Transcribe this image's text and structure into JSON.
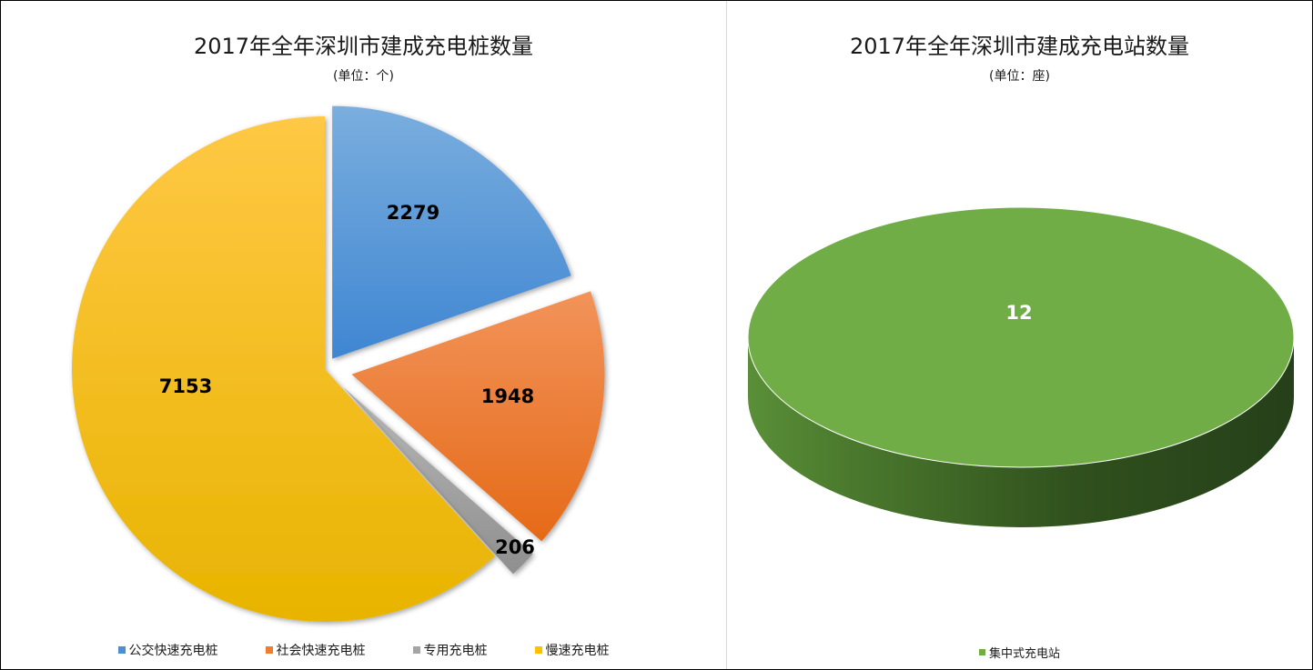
{
  "chart_data": [
    {
      "type": "pie",
      "title": "2017年全年深圳市建成充电桩数量",
      "subtitle": "(单位：个)",
      "categories": [
        "公交快速充电桩",
        "社会快速充电桩",
        "专用充电桩",
        "慢速充电桩"
      ],
      "values": [
        2279,
        1948,
        206,
        7153
      ],
      "data_labels": [
        "2279",
        "1948",
        "206",
        "7153"
      ],
      "colors": [
        "#4a8fd6",
        "#ed7d31",
        "#a5a5a5",
        "#ffc000"
      ],
      "legend_position": "bottom",
      "exploded": true
    },
    {
      "type": "pie",
      "title": "2017年全年深圳市建成充电站数量",
      "subtitle": "(单位：座)",
      "categories": [
        "集中式充电站"
      ],
      "values": [
        12
      ],
      "data_labels": [
        "12"
      ],
      "colors": [
        "#70ad47"
      ],
      "legend_position": "bottom",
      "style": "3d"
    }
  ]
}
